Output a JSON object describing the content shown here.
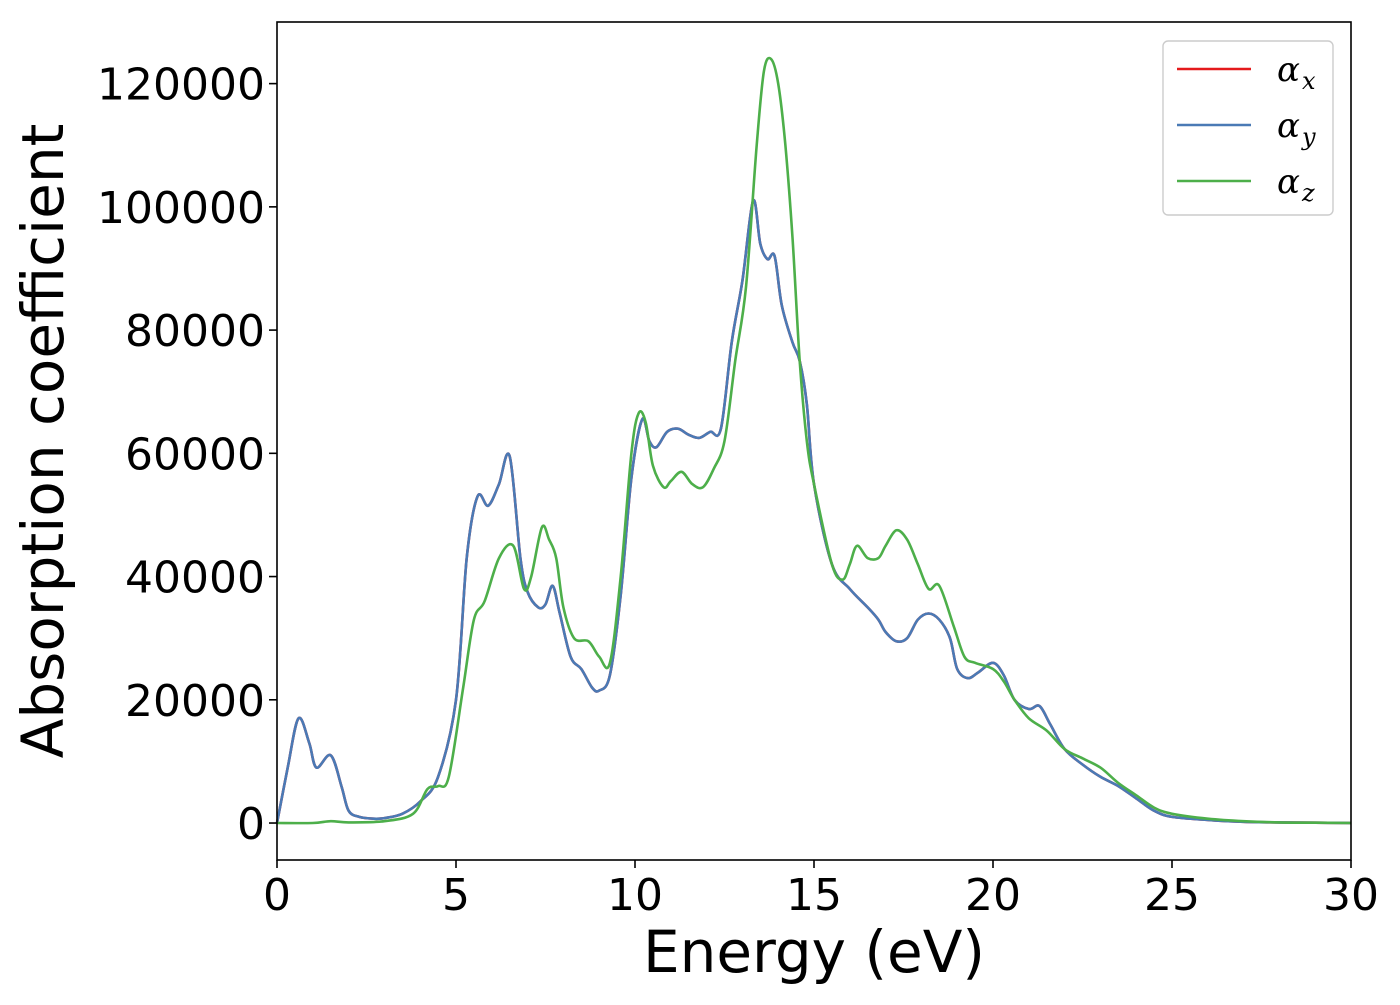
{
  "chart_data": {
    "type": "line",
    "xlabel": "Energy (eV)",
    "ylabel": "Absorption coefficient",
    "xlim": [
      0,
      30
    ],
    "ylim": [
      -6000,
      130000
    ],
    "xticks": [
      0,
      5,
      10,
      15,
      20,
      25,
      30
    ],
    "xtick_labels": [
      "0",
      "5",
      "10",
      "15",
      "20",
      "25",
      "30"
    ],
    "yticks": [
      0,
      20000,
      40000,
      60000,
      80000,
      100000,
      120000
    ],
    "ytick_labels": [
      "0",
      "20000",
      "40000",
      "60000",
      "80000",
      "100000",
      "120000"
    ],
    "grid": false,
    "legend_position": "top-right",
    "series": [
      {
        "name": "αx",
        "base": "α",
        "sub": "x",
        "color": "#e41a1c",
        "x": [
          0,
          0.3,
          0.6,
          0.9,
          1.1,
          1.5,
          1.8,
          2.0,
          2.3,
          2.7,
          3.0,
          3.5,
          4.0,
          4.5,
          5.0,
          5.3,
          5.6,
          5.9,
          6.2,
          6.5,
          6.8,
          7.0,
          7.3,
          7.5,
          7.7,
          7.9,
          8.2,
          8.5,
          8.8,
          9.0,
          9.3,
          9.6,
          9.9,
          10.2,
          10.4,
          10.6,
          10.9,
          11.2,
          11.5,
          11.8,
          12.1,
          12.4,
          12.7,
          13.0,
          13.3,
          13.5,
          13.7,
          13.9,
          14.1,
          14.4,
          14.6,
          14.8,
          15.0,
          15.5,
          16.0,
          16.5,
          16.8,
          17.0,
          17.3,
          17.6,
          17.9,
          18.2,
          18.5,
          18.8,
          19.0,
          19.3,
          19.6,
          20.0,
          20.3,
          20.6,
          21.0,
          21.3,
          21.6,
          22.0,
          22.5,
          23.0,
          23.5,
          24.0,
          24.5,
          25.0,
          26.0,
          27.0,
          28.0,
          29.0,
          30.0
        ],
        "y": [
          0,
          9000,
          17000,
          13000,
          9000,
          11000,
          6000,
          2000,
          1000,
          700,
          800,
          1500,
          3500,
          7500,
          20000,
          43000,
          53000,
          51500,
          55000,
          59500,
          43000,
          37500,
          35000,
          35500,
          38500,
          34000,
          27000,
          25000,
          22000,
          21500,
          24000,
          37000,
          56000,
          65500,
          62000,
          61000,
          63500,
          64000,
          63000,
          62500,
          63500,
          64000,
          78000,
          88000,
          101000,
          94000,
          91500,
          92000,
          84000,
          78000,
          75000,
          68000,
          55000,
          42000,
          38000,
          35000,
          33000,
          31000,
          29500,
          30000,
          33000,
          34000,
          33000,
          30000,
          25000,
          23500,
          24500,
          26000,
          24000,
          20000,
          18500,
          19000,
          16000,
          12000,
          9500,
          7500,
          6000,
          4000,
          2000,
          1000,
          500,
          200,
          100,
          50,
          0
        ]
      },
      {
        "name": "αy",
        "base": "α",
        "sub": "y",
        "color": "#4a7ab5",
        "x": [
          0,
          0.3,
          0.6,
          0.9,
          1.1,
          1.5,
          1.8,
          2.0,
          2.3,
          2.7,
          3.0,
          3.5,
          4.0,
          4.5,
          5.0,
          5.3,
          5.6,
          5.9,
          6.2,
          6.5,
          6.8,
          7.0,
          7.3,
          7.5,
          7.7,
          7.9,
          8.2,
          8.5,
          8.8,
          9.0,
          9.3,
          9.6,
          9.9,
          10.2,
          10.4,
          10.6,
          10.9,
          11.2,
          11.5,
          11.8,
          12.1,
          12.4,
          12.7,
          13.0,
          13.3,
          13.5,
          13.7,
          13.9,
          14.1,
          14.4,
          14.6,
          14.8,
          15.0,
          15.5,
          16.0,
          16.5,
          16.8,
          17.0,
          17.3,
          17.6,
          17.9,
          18.2,
          18.5,
          18.8,
          19.0,
          19.3,
          19.6,
          20.0,
          20.3,
          20.6,
          21.0,
          21.3,
          21.6,
          22.0,
          22.5,
          23.0,
          23.5,
          24.0,
          24.5,
          25.0,
          26.0,
          27.0,
          28.0,
          29.0,
          30.0
        ],
        "y": [
          0,
          9000,
          17000,
          13000,
          9000,
          11000,
          6000,
          2000,
          1000,
          700,
          800,
          1500,
          3500,
          7500,
          20000,
          43000,
          53000,
          51500,
          55000,
          59500,
          43000,
          37500,
          35000,
          35500,
          38500,
          34000,
          27000,
          25000,
          22000,
          21500,
          24000,
          37000,
          56000,
          65500,
          62000,
          61000,
          63500,
          64000,
          63000,
          62500,
          63500,
          64000,
          78000,
          88000,
          101000,
          94000,
          91500,
          92000,
          84000,
          78000,
          75000,
          68000,
          55000,
          42000,
          38000,
          35000,
          33000,
          31000,
          29500,
          30000,
          33000,
          34000,
          33000,
          30000,
          25000,
          23500,
          24500,
          26000,
          24000,
          20000,
          18500,
          19000,
          16000,
          12000,
          9500,
          7500,
          6000,
          4000,
          2000,
          1000,
          500,
          200,
          100,
          50,
          0
        ]
      },
      {
        "name": "αz",
        "base": "α",
        "sub": "z",
        "color": "#4daf4a",
        "x": [
          0,
          1.0,
          1.5,
          2.0,
          3.0,
          3.8,
          4.2,
          4.5,
          4.8,
          5.2,
          5.5,
          5.8,
          6.2,
          6.6,
          6.9,
          7.1,
          7.4,
          7.6,
          7.8,
          8.0,
          8.3,
          8.7,
          9.0,
          9.3,
          9.6,
          9.9,
          10.1,
          10.3,
          10.5,
          10.8,
          11.0,
          11.3,
          11.6,
          11.9,
          12.2,
          12.5,
          12.8,
          13.1,
          13.4,
          13.6,
          13.8,
          14.0,
          14.2,
          14.4,
          14.6,
          14.8,
          15.0,
          15.5,
          15.8,
          16.0,
          16.2,
          16.5,
          16.8,
          17.0,
          17.3,
          17.6,
          17.9,
          18.2,
          18.5,
          18.9,
          19.2,
          19.5,
          20.0,
          20.3,
          20.6,
          21.0,
          21.5,
          22.0,
          22.5,
          23.0,
          23.5,
          24.0,
          24.5,
          25.0,
          26.0,
          27.0,
          28.0,
          29.0,
          30.0
        ],
        "y": [
          0,
          0,
          300,
          100,
          300,
          1500,
          5500,
          6000,
          7500,
          22000,
          33000,
          36000,
          43000,
          45000,
          38000,
          40000,
          48000,
          46000,
          43000,
          35000,
          30000,
          29500,
          27000,
          26000,
          40000,
          60000,
          66500,
          65000,
          58000,
          54500,
          55500,
          57000,
          55000,
          54500,
          57500,
          62000,
          75000,
          87000,
          110000,
          122000,
          124000,
          120000,
          110000,
          95000,
          75000,
          62000,
          55000,
          42000,
          39500,
          42000,
          45000,
          43000,
          43000,
          45000,
          47500,
          46000,
          42000,
          38000,
          38500,
          32000,
          27000,
          26000,
          25000,
          23000,
          20000,
          17000,
          15000,
          12000,
          10500,
          9000,
          6500,
          4500,
          2500,
          1500,
          700,
          300,
          100,
          50,
          0
        ]
      }
    ]
  }
}
